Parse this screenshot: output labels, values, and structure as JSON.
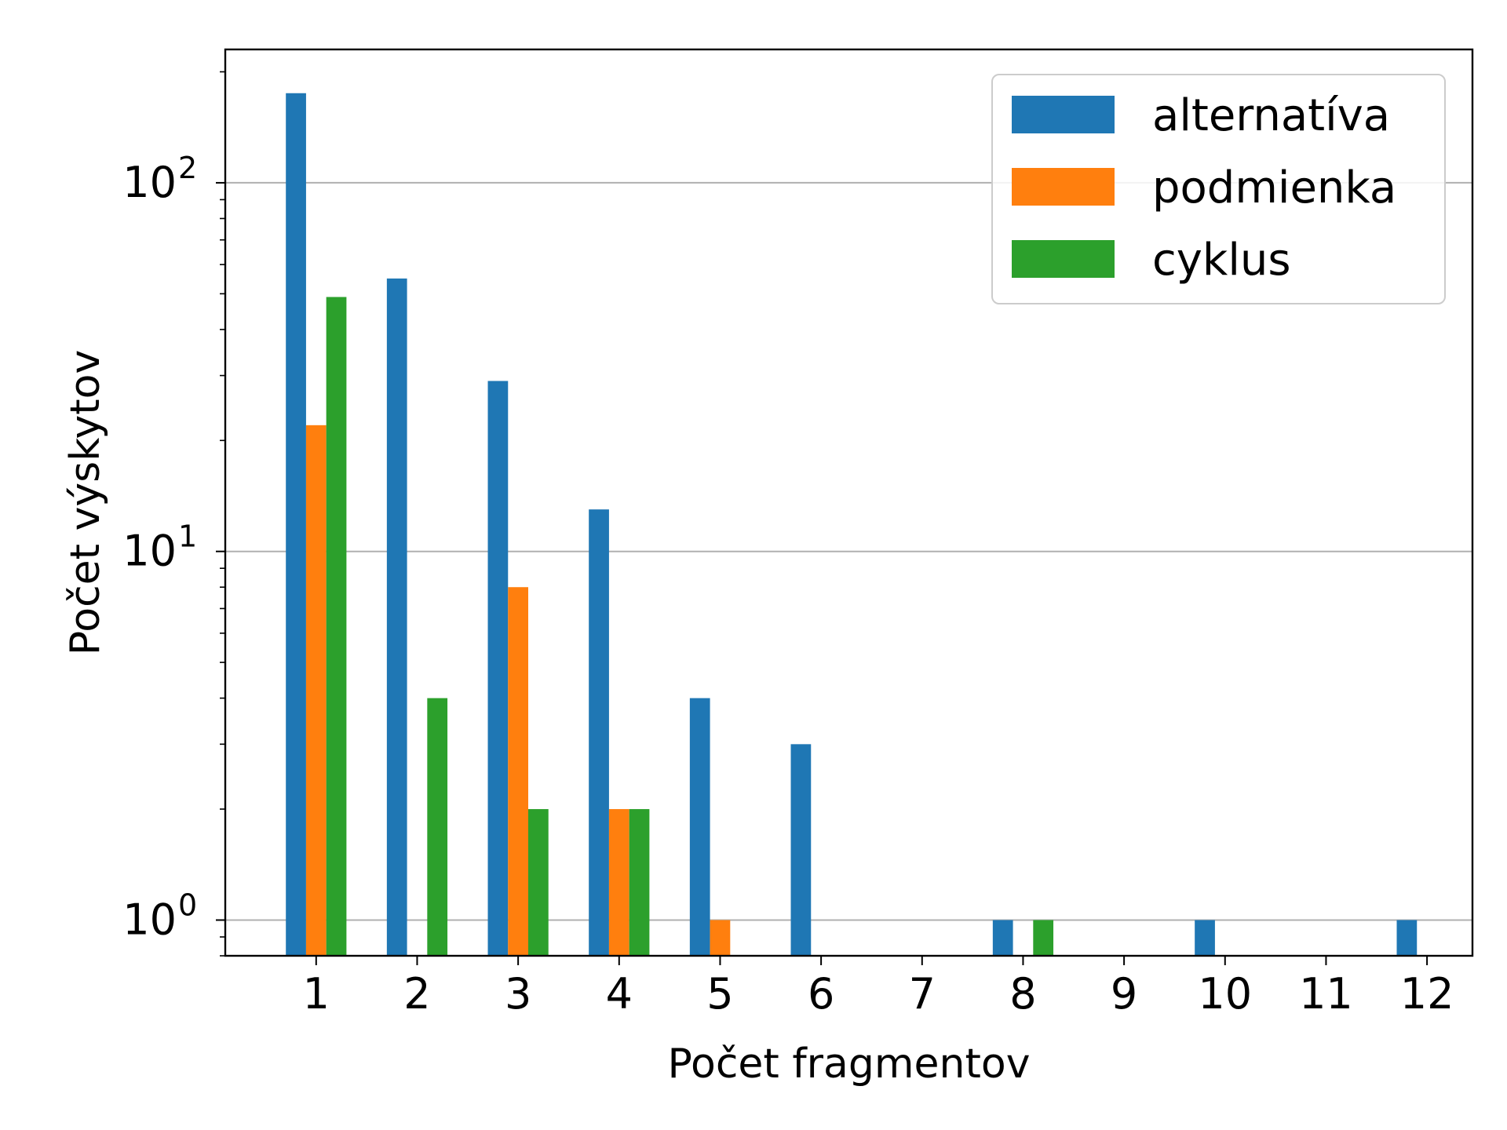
{
  "chart_data": {
    "type": "bar",
    "title": "",
    "xlabel": "Počet fragmentov",
    "ylabel": "Počet výskytov",
    "yscale": "log",
    "ylim": [
      0.8,
      230
    ],
    "xlim": [
      0.1,
      12.45
    ],
    "grid": "y-major",
    "legend_position": "top-right",
    "categories": [
      1,
      2,
      3,
      4,
      5,
      6,
      7,
      8,
      9,
      10,
      11,
      12
    ],
    "y_ticks": [
      {
        "value": 1,
        "base": "10",
        "exp": "0"
      },
      {
        "value": 10,
        "base": "10",
        "exp": "1"
      },
      {
        "value": 100,
        "base": "10",
        "exp": "2"
      }
    ],
    "series": [
      {
        "name": "alternatíva",
        "color": "#1f77b4",
        "values": [
          175,
          55,
          29,
          13,
          4,
          3,
          0,
          1,
          0,
          1,
          0,
          1
        ]
      },
      {
        "name": "podmienka",
        "color": "#ff7f0e",
        "values": [
          22,
          0,
          8,
          2,
          1,
          0,
          0,
          0,
          0,
          0,
          0,
          0
        ]
      },
      {
        "name": "cyklus",
        "color": "#2ca02c",
        "values": [
          49,
          4,
          2,
          2,
          0,
          0,
          0,
          1,
          0,
          0,
          0,
          0
        ]
      }
    ]
  }
}
